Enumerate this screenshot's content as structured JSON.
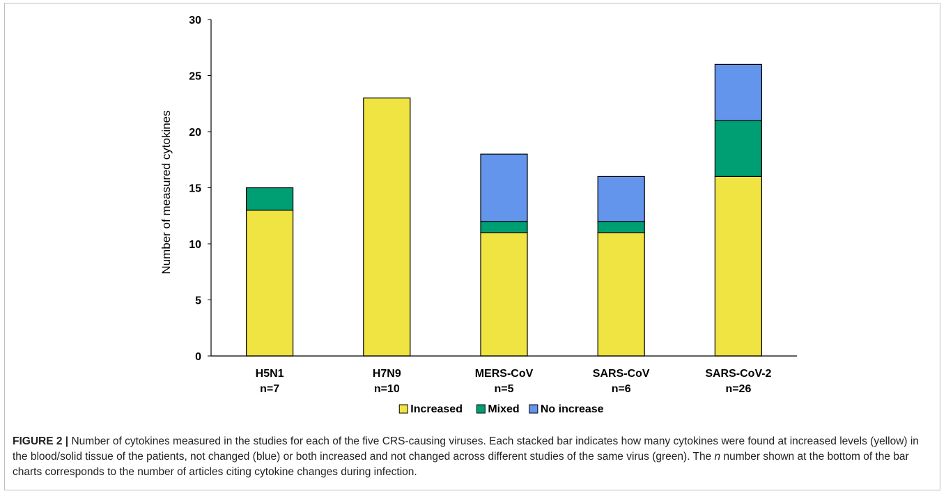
{
  "chart_data": {
    "type": "bar",
    "stacked": true,
    "title": "",
    "ylabel": "Number of measured cytokines",
    "xlabel": "",
    "ylim": [
      0,
      30
    ],
    "yticks": [
      0,
      5,
      10,
      15,
      20,
      25,
      30
    ],
    "categories": [
      "H5N1",
      "H7N9",
      "MERS-CoV",
      "SARS-CoV",
      "SARS-CoV-2"
    ],
    "category_sublabels": [
      "n=7",
      "n=10",
      "n=5",
      "n=6",
      "n=26"
    ],
    "series": [
      {
        "name": "Increased",
        "color": "#f0e442",
        "values": [
          13,
          23,
          11,
          11,
          16
        ]
      },
      {
        "name": "Mixed",
        "color": "#009e73",
        "values": [
          2,
          0,
          1,
          1,
          5
        ]
      },
      {
        "name": "No increase",
        "color": "#6495ed",
        "values": [
          0,
          0,
          6,
          4,
          5
        ]
      }
    ],
    "legend_position": "bottom",
    "grid": false
  },
  "caption": {
    "label": "FIGURE 2 |",
    "text_before_n": " Number of cytokines measured in the studies for each of the five CRS-causing viruses. Each stacked bar indicates how many cytokines were found at increased levels (yellow) in the blood/solid tissue of the patients, not changed (blue) or both increased and not changed across different studies of the same virus (green). The ",
    "n_symbol": "n",
    "text_after_n": " number shown at the bottom of the bar charts corresponds to the number of articles citing cytokine changes during infection."
  }
}
